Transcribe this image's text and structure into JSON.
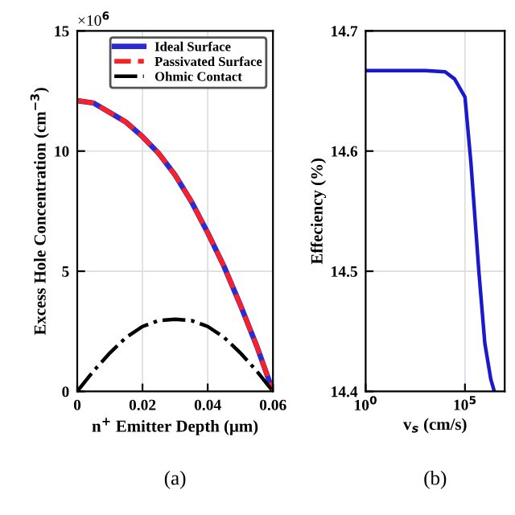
{
  "chart_data": [
    {
      "type": "line",
      "xlabel": "n$^{+}$ Emitter Depth (μm)",
      "ylabel": "Excess Hole Concentration (cm$^{−3}$)",
      "x": [
        0,
        0.005,
        0.01,
        0.015,
        0.02,
        0.025,
        0.03,
        0.035,
        0.04,
        0.045,
        0.05,
        0.055,
        0.06
      ],
      "series": [
        {
          "name": "Ideal Surface",
          "color": "#2b2bd0",
          "line_style": "solid",
          "values": [
            12.1,
            12.0,
            11.6,
            11.2,
            10.6,
            9.9,
            9.0,
            7.9,
            6.6,
            5.2,
            3.6,
            1.9,
            0
          ]
        },
        {
          "name": "Passivated Surface",
          "color": "#ff2020",
          "line_style": "dashed",
          "values": [
            12.1,
            12.0,
            11.6,
            11.2,
            10.6,
            9.9,
            9.0,
            7.9,
            6.6,
            5.2,
            3.6,
            1.9,
            0
          ]
        },
        {
          "name": "Ohmic Contact",
          "color": "#000000",
          "line_style": "dashdot",
          "values": [
            0,
            0.85,
            1.6,
            2.25,
            2.7,
            2.95,
            3.0,
            2.95,
            2.7,
            2.25,
            1.6,
            0.85,
            0
          ]
        }
      ],
      "xlim": [
        0,
        0.06
      ],
      "xticks": [
        0,
        0.02,
        0.04,
        0.06
      ],
      "ylim": [
        0,
        15
      ],
      "yticks": [
        0,
        5,
        10,
        15
      ],
      "grid": true,
      "legend": "top right",
      "annotations": [
        "×10$^{6}$",
        "(a)"
      ]
    },
    {
      "type": "line",
      "xlabel": "v$_{s}$ (cm/s)",
      "ylabel": "Effeciency (%)",
      "log": "x",
      "x": [
        1,
        10,
        100,
        1000,
        10000,
        30000,
        100000,
        200000,
        500000,
        1000000,
        2000000,
        3000000
      ],
      "series": [
        {
          "color": "#1a1acc",
          "line_style": "solid",
          "values": [
            14.667,
            14.667,
            14.667,
            14.667,
            14.666,
            14.66,
            14.645,
            14.59,
            14.5,
            14.44,
            14.41,
            14.4
          ]
        }
      ],
      "xlim": [
        1,
        10000000
      ],
      "xticks": [
        {
          "value": 1,
          "label": "10$^{0}$"
        },
        {
          "value": 100000,
          "label": "10$^{5}$"
        }
      ],
      "ylim": [
        14.4,
        14.7
      ],
      "yticks": [
        14.4,
        14.5,
        14.6,
        14.7
      ],
      "grid": true,
      "annotations": [
        "(b)"
      ]
    }
  ]
}
